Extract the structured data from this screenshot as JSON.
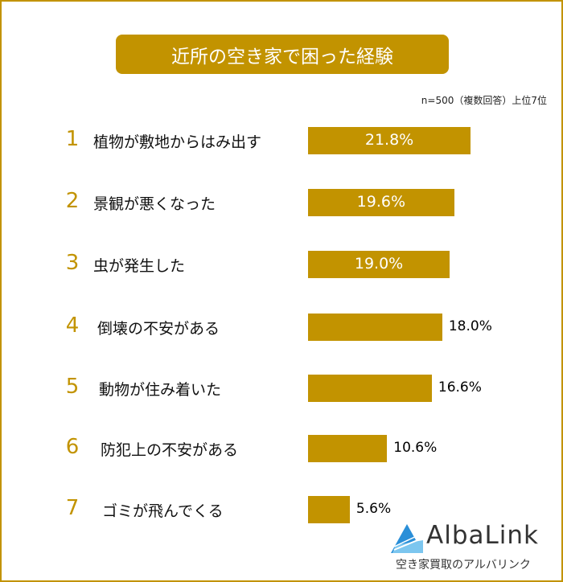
{
  "chart_data": {
    "type": "bar",
    "orientation": "horizontal",
    "title": "近所の空き家で困った経験",
    "note": "n=500（複数回答）上位7位",
    "ranks": [
      "1",
      "2",
      "3",
      "4",
      "5",
      "6",
      "7"
    ],
    "categories": [
      "植物が敷地からはみ出す",
      "景観が悪くなった",
      "虫が発生した",
      "倒壊の不安がある",
      "動物が住み着いた",
      "防犯上の不安がある",
      "ゴミが飛んでくる"
    ],
    "values": [
      21.8,
      19.6,
      19.0,
      18.0,
      16.6,
      10.6,
      5.6
    ],
    "value_labels": [
      "21.8%",
      "19.6%",
      "19.0%",
      "18.0%",
      "16.6%",
      "10.6%",
      "5.6%"
    ],
    "grid": false,
    "color": "#C29300"
  },
  "logo": {
    "name": "AlbaLink",
    "tagline": "空き家買取のアルバリンク"
  }
}
